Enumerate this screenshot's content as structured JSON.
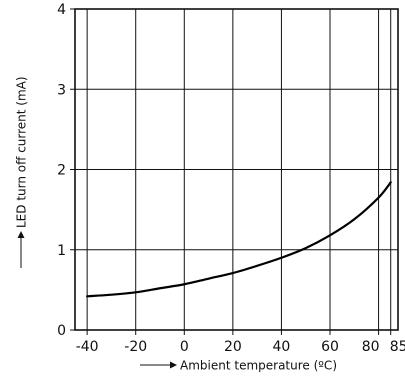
{
  "chart_data": {
    "type": "line",
    "xlabel": "Ambient temperature (ºC)",
    "ylabel": "LED turn off current (mA)",
    "xlim": [
      -45,
      88
    ],
    "ylim": [
      0,
      4
    ],
    "xticks": [
      -40,
      -20,
      0,
      20,
      40,
      60,
      80,
      85
    ],
    "xtick_labels": [
      "-40",
      "-20",
      "0",
      "20",
      "40",
      "60",
      "80",
      "85"
    ],
    "yticks": [
      0,
      1,
      2,
      3,
      4
    ],
    "ytick_labels": [
      "0",
      "1",
      "2",
      "3",
      "4"
    ],
    "grid": true,
    "series": [
      {
        "x": [
          -40,
          -30,
          -20,
          -10,
          0,
          10,
          20,
          30,
          40,
          50,
          60,
          70,
          80,
          85
        ],
        "y": [
          0.42,
          0.44,
          0.47,
          0.52,
          0.57,
          0.64,
          0.71,
          0.8,
          0.9,
          1.02,
          1.18,
          1.38,
          1.65,
          1.84
        ]
      }
    ]
  }
}
